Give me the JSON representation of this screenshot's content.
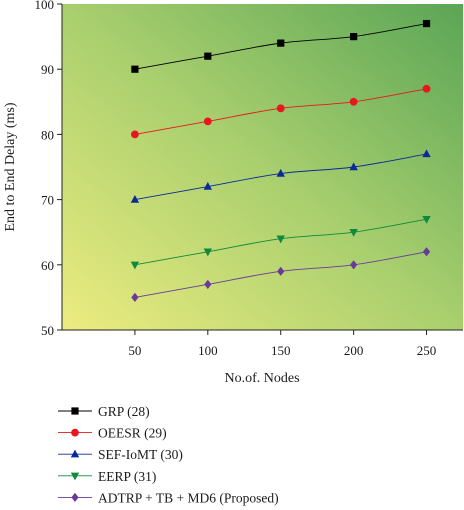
{
  "chart_data": {
    "type": "line",
    "xlabel": "No.of. Nodes",
    "ylabel": "End to End Delay (ms)",
    "x": [
      50,
      100,
      150,
      200,
      250
    ],
    "xlim": [
      0,
      275
    ],
    "ylim": [
      50,
      100
    ],
    "x_ticks": [
      50,
      100,
      150,
      200,
      250
    ],
    "y_ticks": [
      50,
      60,
      70,
      80,
      90,
      100
    ],
    "grid": false,
    "background": "diagonal gradient, yellow (bottom-left) to green (top-right)",
    "legend_position": "bottom",
    "series": [
      {
        "name": "GRP (28)",
        "values": [
          90,
          92,
          94,
          95,
          97
        ],
        "color": "#000000",
        "marker": "square"
      },
      {
        "name": "OEESR (29)",
        "values": [
          80,
          82,
          84,
          85,
          87
        ],
        "color": "#e8161e",
        "marker": "circle"
      },
      {
        "name": "SEF-IoMT (30)",
        "values": [
          70,
          72,
          74,
          75,
          77
        ],
        "color": "#0b2a9a",
        "marker": "triangle-up"
      },
      {
        "name": "EERP (31)",
        "values": [
          60,
          62,
          64,
          65,
          67
        ],
        "color": "#0f8a3c",
        "marker": "triangle-down"
      },
      {
        "name": "ADTRP + TB + MD6 (Proposed)",
        "values": [
          55,
          57,
          59,
          60,
          62
        ],
        "color": "#6a3a9a",
        "marker": "diamond"
      }
    ]
  }
}
